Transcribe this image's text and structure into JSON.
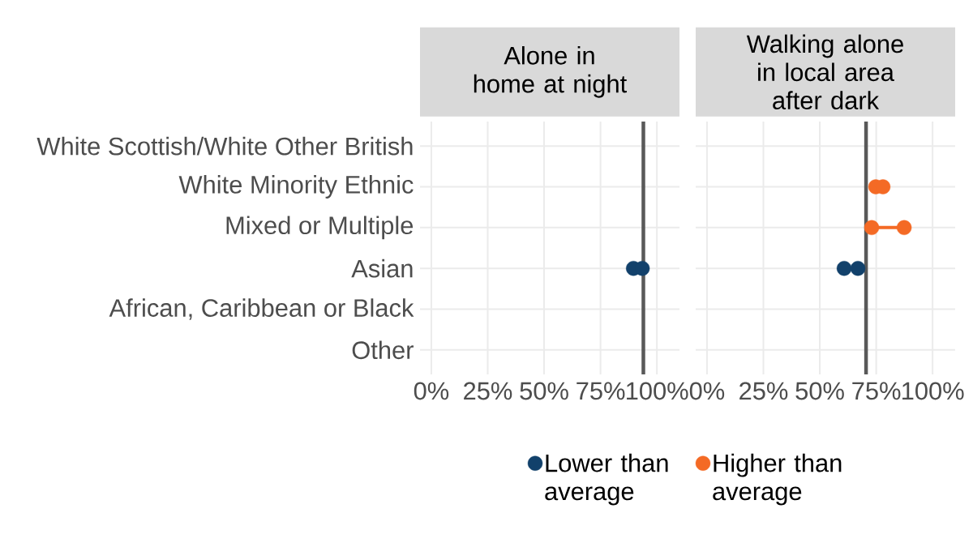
{
  "chart_data": [
    {
      "type": "scatter",
      "orientation": "horizontal",
      "title": "Alone in home at night",
      "categories": [
        "White Scottish/White Other British",
        "White Minority Ethnic",
        "Mixed or Multiple",
        "Asian",
        "African, Caribbean or Black",
        "Other"
      ],
      "xlim": [
        -5,
        110
      ],
      "xticks": [
        {
          "value": 0,
          "label": "0%"
        },
        {
          "value": 25,
          "label": "25%"
        },
        {
          "value": 50,
          "label": "50%"
        },
        {
          "value": 75,
          "label": "75%"
        },
        {
          "value": 100,
          "label": "100%"
        }
      ],
      "grid": true,
      "ref_lines": [
        {
          "axis": "x",
          "value": 94,
          "color": "#595959"
        }
      ],
      "series": [
        {
          "color": "#12416b",
          "x": [
            "Asian",
            "Asian"
          ],
          "values": [
            89.6,
            93.5
          ]
        }
      ]
    },
    {
      "type": "scatter",
      "orientation": "horizontal",
      "title": "Walking alone in local area after dark",
      "categories": [
        "White Scottish/White Other British",
        "White Minority Ethnic",
        "Mixed or Multiple",
        "Asian",
        "African, Caribbean or Black",
        "Other"
      ],
      "xlim": [
        -5,
        110
      ],
      "xticks": [
        {
          "value": 0,
          "label": "0%"
        },
        {
          "value": 25,
          "label": "25%"
        },
        {
          "value": 50,
          "label": "50%"
        },
        {
          "value": 75,
          "label": "75%"
        },
        {
          "value": 100,
          "label": "100%"
        }
      ],
      "grid": true,
      "tick_labels": "x",
      "legend": "bottom",
      "ref_lines": [
        {
          "axis": "x",
          "value": 70.5,
          "color": "#595959"
        }
      ],
      "series": [
        {
          "type": "line",
          "color": "#f46a25",
          "x": [
            "Mixed or Multiple",
            "Mixed or Multiple"
          ],
          "values": [
            73,
            87.4
          ]
        },
        {
          "name": "Lower than average",
          "color": "#12416b",
          "x": [
            "Asian",
            "Asian"
          ],
          "values": [
            60.8,
            66.9
          ]
        },
        {
          "name": "Higher than average",
          "color": "#f46a25",
          "x": [
            "White Minority Ethnic",
            "White Minority Ethnic",
            "Mixed or Multiple",
            "Mixed or Multiple"
          ],
          "values": [
            74.8,
            78,
            73,
            87.4
          ]
        }
      ]
    }
  ]
}
